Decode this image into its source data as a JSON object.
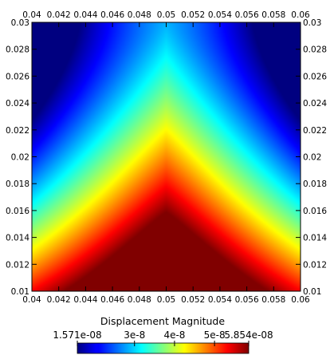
{
  "chart_data": {
    "type": "heatmap",
    "field": "Displacement Magnitude",
    "colormap": "jet",
    "xlim": [
      0.04,
      0.06
    ],
    "ylim": [
      0.01,
      0.03
    ],
    "x_ticks": [
      "0.04",
      "0.042",
      "0.044",
      "0.046",
      "0.048",
      "0.05",
      "0.052",
      "0.054",
      "0.056",
      "0.058",
      "0.06"
    ],
    "y_ticks": [
      "0.01",
      "0.012",
      "0.014",
      "0.016",
      "0.018",
      "0.02",
      "0.022",
      "0.024",
      "0.026",
      "0.028",
      "0.03"
    ],
    "x_tick_values": [
      0.04,
      0.042,
      0.044,
      0.046,
      0.048,
      0.05,
      0.052,
      0.054,
      0.056,
      0.058,
      0.06
    ],
    "y_tick_values": [
      0.01,
      0.012,
      0.014,
      0.016,
      0.018,
      0.02,
      0.022,
      0.024,
      0.026,
      0.028,
      0.03
    ],
    "color_range": [
      1.571e-08,
      5.854e-08
    ],
    "colorbar": {
      "title": "Displacement Magnitude",
      "labels": [
        "1.571e-08",
        "3e-8",
        "4e-8",
        "5e-8",
        "5.854e-08"
      ],
      "label_values": [
        1.571e-08,
        3e-08,
        4e-08,
        5e-08,
        5.854e-08
      ],
      "placement": "bottom"
    },
    "peak_location": [
      0.05,
      0.01
    ],
    "peak_value": 5.854e-08,
    "min_locations": [
      [
        0.04,
        0.03
      ],
      [
        0.06,
        0.03
      ]
    ],
    "min_value": 1.571e-08
  }
}
